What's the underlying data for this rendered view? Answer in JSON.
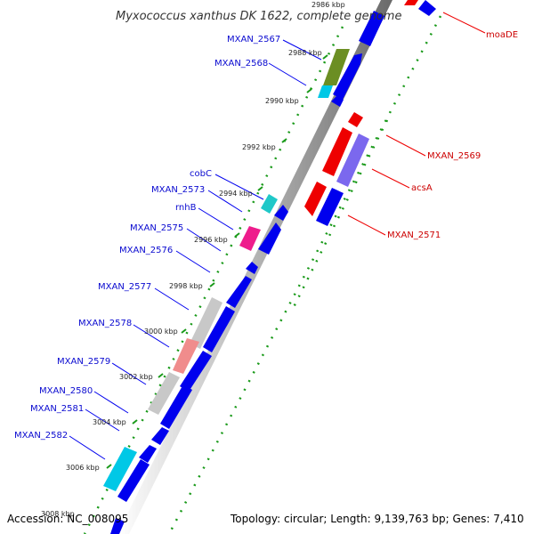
{
  "title": "Myxococcus xanthus DK 1622, complete genome",
  "accession": "Accession: NC_008095",
  "topology": "Topology: circular; Length: 9,139,763 bp; Genes: 7,410",
  "colors": {
    "forward": "#0000ee",
    "reverse": "#ee0000",
    "gray": "#c8c8c8",
    "olive": "#6b8e23",
    "cyan": "#00c8e6",
    "teal": "#20c8c8",
    "magenta": "#ee1c8c",
    "pink": "#f08c8c",
    "lavender": "#7b68ee",
    "dots": "#1a9a1a"
  },
  "ticks": [
    {
      "label": "2986 kbp"
    },
    {
      "label": "2988 kbp"
    },
    {
      "label": "2990 kbp"
    },
    {
      "label": "2992 kbp"
    },
    {
      "label": "2994 kbp"
    },
    {
      "label": "2996 kbp"
    },
    {
      "label": "2998 kbp"
    },
    {
      "label": "3000 kbp"
    },
    {
      "label": "3002 kbp"
    },
    {
      "label": "3004 kbp"
    },
    {
      "label": "3006 kbp"
    },
    {
      "label": "3008 kbp"
    }
  ],
  "left_labels": [
    {
      "text": "MXAN_2567"
    },
    {
      "text": "MXAN_2568"
    },
    {
      "text": "cobC"
    },
    {
      "text": "MXAN_2573"
    },
    {
      "text": "rnhB"
    },
    {
      "text": "MXAN_2575"
    },
    {
      "text": "MXAN_2576"
    },
    {
      "text": "MXAN_2577"
    },
    {
      "text": "MXAN_2578"
    },
    {
      "text": "MXAN_2579"
    },
    {
      "text": "MXAN_2580"
    },
    {
      "text": "MXAN_2581"
    },
    {
      "text": "MXAN_2582"
    }
  ],
  "right_labels": [
    {
      "text": "moaDE"
    },
    {
      "text": "MXAN_2569"
    },
    {
      "text": "acsA"
    },
    {
      "text": "MXAN_2571"
    }
  ]
}
